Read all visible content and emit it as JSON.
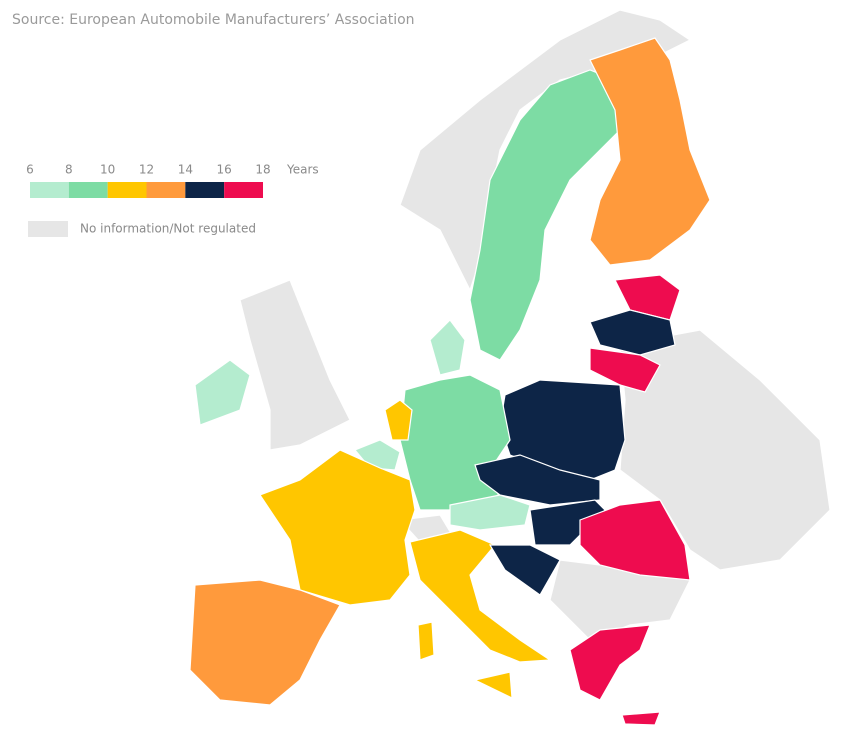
{
  "source": "Source: European Automobile Manufacturers’ Association",
  "legend": {
    "ticks": [
      6,
      8,
      10,
      12,
      14,
      16,
      18
    ],
    "unit": "Years",
    "colors": [
      "#b4eccf",
      "#7ddca4",
      "#ffc600",
      "#ff9a3c",
      "#0d2547",
      "#ee0c4f"
    ],
    "no_data": {
      "label": "No information/Not regulated",
      "color": "#e6e6e6"
    }
  }
}
